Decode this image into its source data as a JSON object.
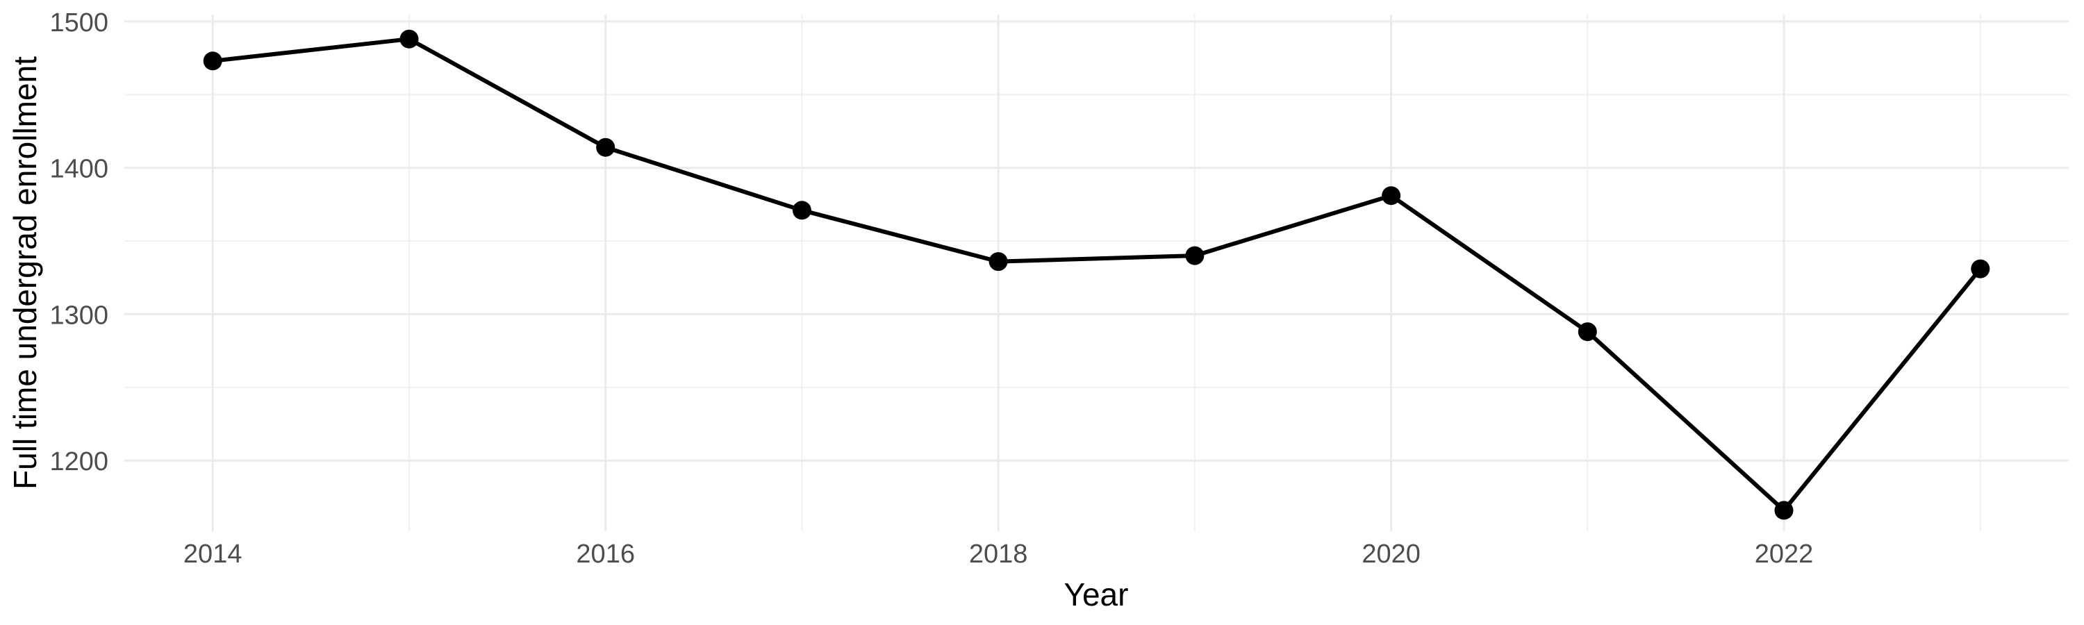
{
  "chart_data": {
    "type": "line",
    "title": "",
    "xlabel": "Year",
    "ylabel": "Full time undergrad enrollment",
    "x": [
      2014,
      2015,
      2016,
      2017,
      2018,
      2019,
      2020,
      2021,
      2022,
      2023
    ],
    "values": [
      1473,
      1488,
      1414,
      1371,
      1336,
      1340,
      1381,
      1288,
      1166,
      1331
    ],
    "series_name": "Full time undergrad enrollment",
    "x_major_breaks": [
      2014,
      2016,
      2018,
      2020,
      2022
    ],
    "x_major_labels": [
      "2014",
      "2016",
      "2018",
      "2020",
      "2022"
    ],
    "x_minor_breaks": [
      2015,
      2017,
      2019,
      2021,
      2023
    ],
    "y_major_breaks": [
      1200,
      1300,
      1400,
      1500
    ],
    "y_major_labels": [
      "1200",
      "1300",
      "1400",
      "1500"
    ],
    "y_minor_breaks": [
      1250,
      1350,
      1450
    ],
    "xlim": [
      2013.55,
      2023.45
    ],
    "ylim": [
      1151.7,
      1504.7
    ],
    "grid": "major-and-minor",
    "legend_position": "none",
    "marker": "filled-circle",
    "colors": {
      "line": "#000000",
      "point": "#000000",
      "grid_major": "#ebebeb",
      "grid_minor": "#f0f0f0",
      "tick_text": "#4d4d4d",
      "axis_title_text": "#000000",
      "background": "#ffffff"
    }
  }
}
